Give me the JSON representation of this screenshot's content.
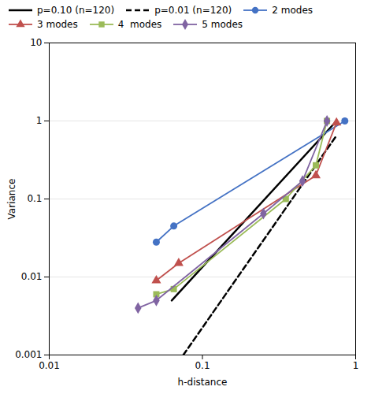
{
  "chart_data": {
    "type": "line",
    "xlabel": "h-distance",
    "ylabel": "Variance",
    "log": true,
    "xlim": [
      0.01,
      1.0
    ],
    "ylim": [
      0.001,
      10
    ],
    "xticks": [
      0.01,
      0.1,
      1
    ],
    "yticks": [
      0.001,
      0.01,
      0.1,
      1,
      10
    ],
    "grid": "y",
    "legend": "top",
    "series": [
      {
        "name": "p=0.10 (n=120)",
        "color": "#000000",
        "line_style": "solid",
        "x": [
          0.063,
          0.75
        ],
        "values": [
          0.005,
          1.0
        ]
      },
      {
        "name": "p=0.01 (n=120)",
        "color": "#000000",
        "line_style": "dashed",
        "x": [
          0.075,
          0.75
        ],
        "values": [
          0.001,
          0.65
        ]
      },
      {
        "name": "2 modes",
        "color": "#4472C4",
        "marker": "circle",
        "line_style": "solid",
        "x": [
          0.05,
          0.065,
          0.85
        ],
        "values": [
          0.028,
          0.045,
          1.0
        ]
      },
      {
        "name": "3 modes",
        "color": "#C0504D",
        "marker": "triangle",
        "line_style": "solid",
        "x": [
          0.05,
          0.07,
          0.55,
          0.75
        ],
        "values": [
          0.009,
          0.015,
          0.2,
          0.95
        ]
      },
      {
        "name": "4  modes",
        "color": "#9BBB59",
        "marker": "square",
        "line_style": "solid",
        "x": [
          0.05,
          0.065,
          0.35,
          0.55,
          0.65
        ],
        "values": [
          0.006,
          0.007,
          0.1,
          0.27,
          1.0
        ]
      },
      {
        "name": "5 modes",
        "color": "#8064A2",
        "marker": "diamond",
        "line_style": "solid",
        "x": [
          0.038,
          0.05,
          0.25,
          0.45,
          0.65
        ],
        "values": [
          0.004,
          0.005,
          0.065,
          0.17,
          1.0
        ]
      }
    ]
  }
}
